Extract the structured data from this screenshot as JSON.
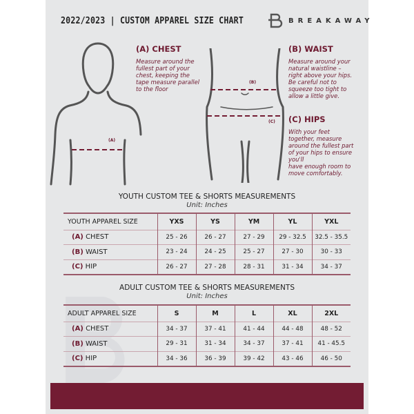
{
  "header": {
    "title": "2022/2023 | CUSTOM APPAREL SIZE CHART",
    "brand": "BREAKAWAY",
    "logo_letter": "B"
  },
  "guide": {
    "chest": {
      "heading": "(A) CHEST",
      "desc": [
        "Measure around the",
        "fullest part of your",
        "chest, keeping the",
        "tape measure parallel",
        "to the floor"
      ],
      "marker": "(A)"
    },
    "waist": {
      "heading": "(B) WAIST",
      "desc": [
        "Measure around your",
        "natural waistline –",
        "right above your hips.",
        "Be careful not to",
        "squeeze too tight to",
        "allow a little give."
      ],
      "marker": "(B)"
    },
    "hips": {
      "heading": "(C) HIPS",
      "desc": [
        "With your feet",
        "together, measure",
        "around the fullest part",
        "of your hips to ensure",
        "you'll",
        "have enough room to",
        "move comfortably."
      ],
      "marker": "(C)"
    }
  },
  "youth": {
    "title": "YOUTH CUSTOM TEE & SHORTS MEASUREMENTS",
    "unit": "Unit: Inches",
    "header": "YOUTH APPAREL SIZE",
    "sizes": [
      "YXS",
      "YS",
      "YM",
      "YL",
      "YXL"
    ],
    "rows": [
      {
        "code": "(A)",
        "name": "CHEST",
        "values": [
          "25 - 26",
          "26 - 27",
          "27 - 29",
          "29 - 32.5",
          "32.5 - 35.5"
        ]
      },
      {
        "code": "(B)",
        "name": "WAIST",
        "values": [
          "23 - 24",
          "24 - 25",
          "25 - 27",
          "27 - 30",
          "30 - 33"
        ]
      },
      {
        "code": "(C)",
        "name": "HIP",
        "values": [
          "26 - 27",
          "27 - 28",
          "28 - 31",
          "31 - 34",
          "34 - 37"
        ]
      }
    ]
  },
  "adult": {
    "title": "ADULT CUSTOM TEE & SHORTS MEASUREMENTS",
    "unit": "Unit: Inches",
    "header": "ADULT APPAREL SIZE",
    "sizes": [
      "S",
      "M",
      "L",
      "XL",
      "2XL"
    ],
    "rows": [
      {
        "code": "(A)",
        "name": "CHEST",
        "values": [
          "34 - 37",
          "37 - 41",
          "41 - 44",
          "44 - 48",
          "48 - 52"
        ]
      },
      {
        "code": "(B)",
        "name": "WAIST",
        "values": [
          "29 - 31",
          "31 - 34",
          "34 - 37",
          "37 - 41",
          "41 - 45.5"
        ]
      },
      {
        "code": "(C)",
        "name": "HIP",
        "values": [
          "34 - 36",
          "36 - 39",
          "39 - 42",
          "43 - 46",
          "46 - 50"
        ]
      }
    ]
  },
  "colors": {
    "accent": "#731c33",
    "background": "#e6e7e8"
  }
}
